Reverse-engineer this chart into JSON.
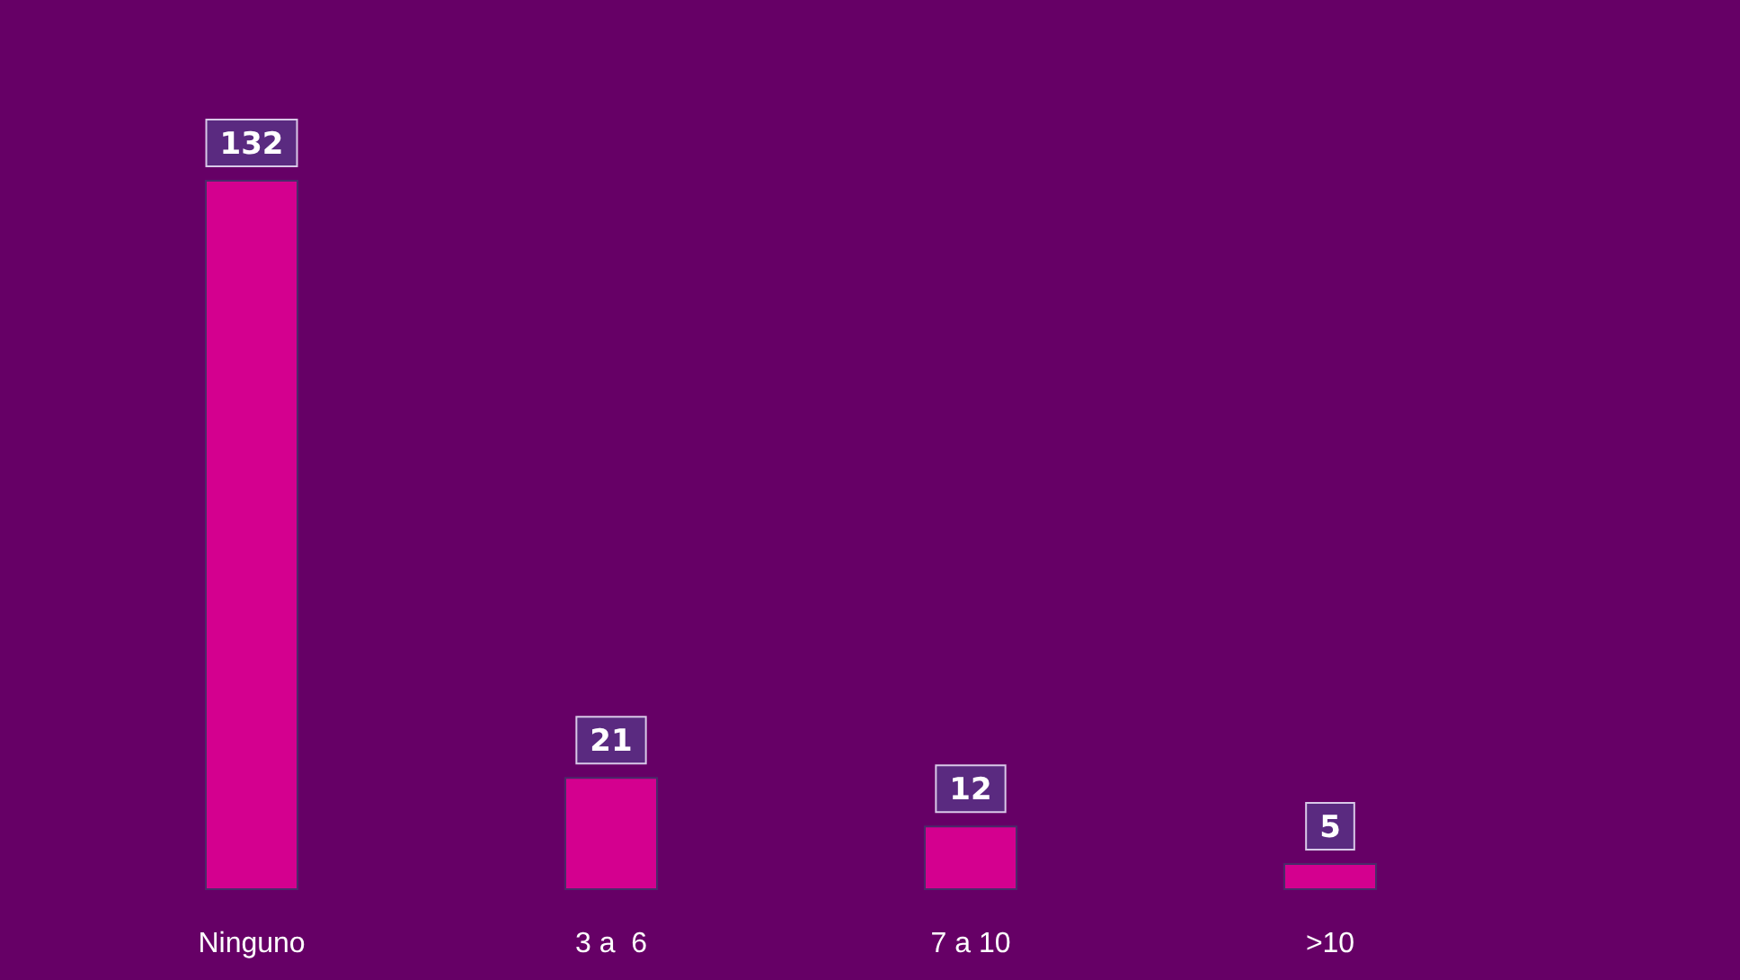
{
  "chart_data": {
    "type": "bar",
    "categories": [
      "Ninguno",
      "3 a  6",
      "7 a 10",
      ">10"
    ],
    "values": [
      132,
      21,
      12,
      5
    ],
    "color": "#d4008f",
    "data_labels": true
  }
}
